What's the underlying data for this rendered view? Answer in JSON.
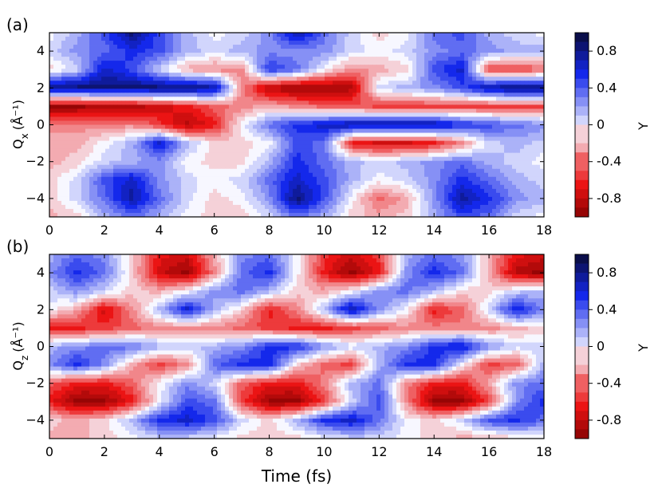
{
  "chart_data": [
    {
      "panel": "(a)",
      "type": "heatmap",
      "subtype": "filled contour",
      "ylabel": "Q",
      "ylabel_sub": "x",
      "ylabel_unit": "(Å⁻¹)",
      "xlim": [
        0,
        18
      ],
      "ylim": [
        -5,
        5
      ],
      "xticks": [
        0,
        2,
        4,
        6,
        8,
        10,
        12,
        14,
        16,
        18
      ],
      "yticks": [
        -4,
        -2,
        0,
        2,
        4
      ],
      "colorbar": {
        "label": "Y",
        "range": [
          -1,
          1
        ],
        "ticks": [
          0.8,
          0.4,
          0,
          -0.4,
          -0.8
        ],
        "colormap": "seismic_r (red negative, blue positive)"
      },
      "x": [
        0,
        1,
        2,
        3,
        4,
        5,
        6,
        7,
        8,
        9,
        10,
        11,
        12,
        13,
        14,
        15,
        16,
        17,
        18
      ],
      "y": [
        -5,
        -4,
        -3,
        -2,
        -1,
        0,
        1,
        2,
        3,
        4,
        5
      ],
      "z": [
        [
          -0.2,
          -0.1,
          0.2,
          0.4,
          0.2,
          0.0,
          -0.1,
          -0.1,
          0.1,
          0.4,
          0.2,
          -0.1,
          -0.2,
          -0.1,
          0.2,
          0.5,
          0.4,
          0.1,
          0.0
        ],
        [
          -0.1,
          0.1,
          0.4,
          0.8,
          0.4,
          0.1,
          -0.1,
          0.0,
          0.3,
          0.9,
          0.5,
          0.0,
          -0.4,
          -0.2,
          0.3,
          0.8,
          0.6,
          0.3,
          0.2
        ],
        [
          -0.1,
          0.1,
          0.5,
          0.7,
          0.3,
          0.1,
          0.0,
          0.1,
          0.4,
          0.7,
          0.5,
          0.2,
          0.0,
          0.1,
          0.3,
          0.6,
          0.4,
          0.2,
          0.1
        ],
        [
          -0.2,
          -0.1,
          0.1,
          0.2,
          0.3,
          0.0,
          -0.1,
          -0.1,
          0.2,
          0.6,
          0.4,
          0.2,
          0.1,
          0.2,
          0.3,
          0.4,
          0.2,
          0.1,
          0.0
        ],
        [
          -0.2,
          -0.2,
          0.0,
          0.2,
          0.7,
          0.2,
          -0.1,
          -0.1,
          0.0,
          0.5,
          0.4,
          -0.6,
          -0.7,
          -0.7,
          -0.6,
          -0.3,
          0.1,
          0.2,
          0.1
        ],
        [
          -0.3,
          -0.3,
          -0.3,
          -0.3,
          -0.5,
          -0.8,
          -0.6,
          0.0,
          0.4,
          0.6,
          0.7,
          0.8,
          0.8,
          0.8,
          0.8,
          0.6,
          0.5,
          0.4,
          0.3
        ],
        [
          -0.9,
          -0.9,
          -0.8,
          -0.8,
          -0.7,
          -0.6,
          -0.4,
          -0.3,
          -0.2,
          -0.3,
          -0.4,
          -0.4,
          -0.5,
          -0.5,
          -0.5,
          -0.5,
          -0.5,
          -0.5,
          -0.5
        ],
        [
          0.9,
          0.9,
          0.9,
          0.9,
          0.9,
          0.9,
          0.8,
          -0.3,
          -0.8,
          -0.9,
          -0.9,
          -0.8,
          0.1,
          0.2,
          0.3,
          0.5,
          0.8,
          0.9,
          0.9
        ],
        [
          -0.1,
          0.1,
          0.7,
          0.5,
          0.1,
          -0.2,
          -0.3,
          -0.3,
          0.6,
          0.4,
          0.0,
          -0.3,
          -0.2,
          -0.1,
          0.5,
          0.7,
          -0.5,
          -0.5,
          -0.4
        ],
        [
          0.1,
          0.3,
          0.4,
          0.6,
          0.5,
          0.2,
          0.1,
          0.2,
          0.3,
          0.3,
          0.3,
          0.1,
          0.0,
          0.1,
          0.3,
          0.4,
          0.3,
          0.2,
          0.2
        ],
        [
          0.0,
          0.2,
          0.5,
          0.9,
          0.5,
          0.2,
          0.0,
          0.1,
          0.3,
          0.8,
          0.4,
          0.1,
          -0.1,
          0.0,
          0.4,
          0.5,
          0.2,
          0.1,
          0.0
        ]
      ]
    },
    {
      "panel": "(b)",
      "type": "heatmap",
      "subtype": "filled contour",
      "ylabel": "Q",
      "ylabel_sub": "z",
      "ylabel_unit": "(Å⁻¹)",
      "xlabel": "Time (fs)",
      "xlim": [
        0,
        18
      ],
      "ylim": [
        -5,
        5
      ],
      "xticks": [
        0,
        2,
        4,
        6,
        8,
        10,
        12,
        14,
        16,
        18
      ],
      "yticks": [
        -4,
        -2,
        0,
        2,
        4
      ],
      "colorbar": {
        "label": "Y",
        "range": [
          -1,
          1
        ],
        "ticks": [
          0.8,
          0.4,
          0,
          -0.4,
          -0.8
        ],
        "colormap": "seismic_r (red negative, blue positive)"
      },
      "x": [
        0,
        1,
        2,
        3,
        4,
        5,
        6,
        7,
        8,
        9,
        10,
        11,
        12,
        13,
        14,
        15,
        16,
        17,
        18
      ],
      "y": [
        -5,
        -4,
        -3,
        -2,
        -1,
        0,
        1,
        2,
        3,
        4,
        5
      ],
      "z": [
        [
          -0.2,
          -0.2,
          -0.1,
          0.0,
          0.1,
          0.1,
          0.0,
          -0.1,
          -0.1,
          -0.1,
          0.0,
          0.1,
          0.1,
          0.0,
          -0.1,
          -0.2,
          -0.2,
          -0.1,
          0.0
        ],
        [
          -0.1,
          -0.2,
          -0.1,
          0.2,
          0.6,
          0.7,
          0.5,
          0.1,
          -0.1,
          0.2,
          0.6,
          0.7,
          0.4,
          0.0,
          -0.1,
          0.1,
          0.5,
          0.6,
          0.4
        ],
        [
          -0.6,
          -0.9,
          -0.9,
          -0.6,
          0.0,
          0.5,
          0.4,
          -0.5,
          -0.9,
          -0.9,
          -0.5,
          0.1,
          0.5,
          -0.3,
          -0.9,
          -0.9,
          -0.5,
          0.3,
          0.6
        ],
        [
          -0.4,
          -0.6,
          -0.6,
          -0.4,
          0.0,
          0.3,
          0.1,
          -0.4,
          -0.6,
          -0.6,
          -0.3,
          0.2,
          0.4,
          -0.3,
          -0.6,
          -0.6,
          -0.2,
          0.3,
          0.4
        ],
        [
          0.3,
          0.6,
          0.3,
          -0.2,
          -0.5,
          -0.3,
          0.4,
          0.6,
          0.6,
          -0.1,
          -0.4,
          -0.5,
          0.2,
          0.6,
          0.6,
          0.0,
          -0.5,
          -0.4,
          0.2
        ],
        [
          0.2,
          0.3,
          0.4,
          0.4,
          0.2,
          0.1,
          0.2,
          0.3,
          0.6,
          0.6,
          0.3,
          0.1,
          0.2,
          0.3,
          0.6,
          0.7,
          0.3,
          0.1,
          0.1
        ],
        [
          -0.6,
          -0.6,
          -0.5,
          -0.4,
          -0.3,
          -0.3,
          -0.3,
          -0.4,
          -0.5,
          -0.6,
          -0.6,
          -0.5,
          -0.4,
          -0.3,
          -0.3,
          -0.3,
          -0.3,
          -0.2,
          -0.1
        ],
        [
          0.0,
          -0.2,
          -0.7,
          -0.3,
          0.2,
          0.7,
          0.2,
          -0.1,
          -0.6,
          -0.3,
          0.2,
          0.8,
          0.3,
          0.0,
          -0.6,
          -0.4,
          0.1,
          0.7,
          0.3
        ],
        [
          0.1,
          0.3,
          0.1,
          -0.1,
          -0.2,
          0.0,
          0.3,
          0.4,
          0.2,
          -0.1,
          -0.2,
          0.0,
          0.3,
          0.4,
          0.2,
          -0.1,
          -0.1,
          0.1,
          0.2
        ],
        [
          0.3,
          0.6,
          0.4,
          -0.1,
          -0.7,
          -0.9,
          -0.3,
          0.4,
          0.6,
          0.0,
          -0.6,
          -0.9,
          -0.6,
          0.3,
          0.6,
          0.4,
          -0.2,
          -0.8,
          -0.9
        ],
        [
          0.2,
          0.4,
          0.3,
          -0.1,
          -0.6,
          -0.7,
          -0.2,
          0.3,
          0.4,
          0.0,
          -0.5,
          -0.7,
          -0.5,
          0.2,
          0.4,
          0.3,
          -0.2,
          -0.6,
          -0.7
        ]
      ]
    }
  ],
  "colors": {
    "negative_strong": "#7a0000",
    "neutral": "#f7f7ff",
    "positive_strong": "#0a0e4a"
  }
}
